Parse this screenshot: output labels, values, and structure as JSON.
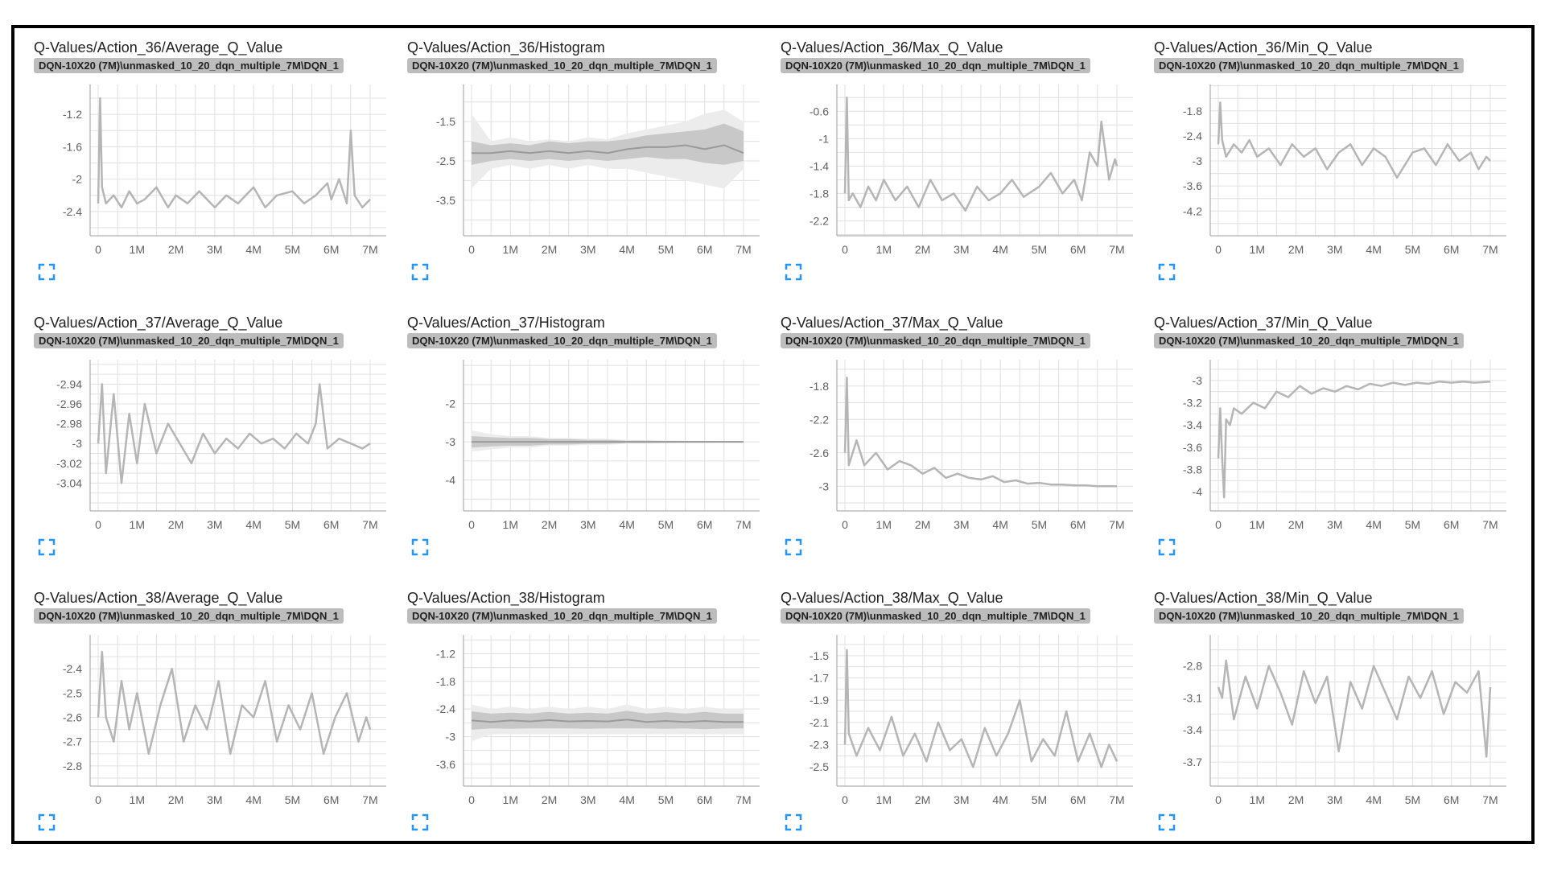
{
  "badge_text": "DQN-10X20 (7M)\\unmasked_10_20_dqn_multiple_7M\\DQN_1",
  "colors": {
    "line": "#b5b5b5",
    "grid": "#e0e0e0",
    "axis": "#9e9e9e",
    "expand_icon": "#2196f3"
  },
  "x_ticks": [
    "0",
    "1M",
    "2M",
    "3M",
    "4M",
    "5M",
    "6M",
    "7M"
  ],
  "chart_data": [
    {
      "type": "line",
      "title": "Q-Values/Action_36/Average_Q_Value",
      "xlim": [
        0,
        7000000
      ],
      "ylim": [
        -2.6,
        -0.95
      ],
      "yticks": [
        "-1.2",
        "-1.6",
        "-2",
        "-2.4"
      ],
      "ytick_values": [
        -1.2,
        -1.6,
        -2,
        -2.4
      ],
      "grid": true,
      "x": [
        0,
        50000,
        100000,
        200000,
        400000,
        600000,
        800000,
        1000000,
        1200000,
        1500000,
        1800000,
        2000000,
        2300000,
        2600000,
        3000000,
        3300000,
        3600000,
        4000000,
        4300000,
        4600000,
        5000000,
        5300000,
        5600000,
        5900000,
        6000000,
        6200000,
        6400000,
        6500000,
        6600000,
        6800000,
        7000000
      ],
      "y": [
        -2.3,
        -1.0,
        -2.1,
        -2.3,
        -2.2,
        -2.35,
        -2.15,
        -2.3,
        -2.25,
        -2.1,
        -2.35,
        -2.2,
        -2.3,
        -2.15,
        -2.35,
        -2.2,
        -2.3,
        -2.1,
        -2.35,
        -2.2,
        -2.15,
        -2.3,
        -2.2,
        -2.05,
        -2.25,
        -2.0,
        -2.3,
        -1.4,
        -2.2,
        -2.35,
        -2.25
      ]
    },
    {
      "type": "area",
      "title": "Q-Values/Action_36/Histogram",
      "xlim": [
        0,
        7000000
      ],
      "ylim": [
        -4.2,
        -0.8
      ],
      "yticks": [
        "-1.5",
        "-2.5",
        "-3.5"
      ],
      "ytick_values": [
        -1.5,
        -2.5,
        -3.5
      ],
      "grid": true,
      "x": [
        0,
        500000,
        1000000,
        1500000,
        2000000,
        2500000,
        3000000,
        3500000,
        4000000,
        4500000,
        5000000,
        5500000,
        6000000,
        6500000,
        7000000
      ],
      "outer_upper": [
        -1.3,
        -2.0,
        -1.9,
        -2.0,
        -1.95,
        -2.0,
        -1.9,
        -1.95,
        -1.8,
        -1.7,
        -1.6,
        -1.5,
        -1.3,
        -1.2,
        -1.5
      ],
      "upper": [
        -2.0,
        -2.1,
        -2.05,
        -2.1,
        -2.0,
        -2.05,
        -2.0,
        -2.0,
        -1.95,
        -1.85,
        -1.8,
        -1.75,
        -1.7,
        -1.55,
        -1.75
      ],
      "median": [
        -2.3,
        -2.3,
        -2.25,
        -2.3,
        -2.25,
        -2.3,
        -2.25,
        -2.3,
        -2.2,
        -2.15,
        -2.15,
        -2.1,
        -2.2,
        -2.1,
        -2.3
      ],
      "lower": [
        -2.6,
        -2.5,
        -2.45,
        -2.5,
        -2.45,
        -2.5,
        -2.45,
        -2.5,
        -2.45,
        -2.4,
        -2.45,
        -2.45,
        -2.55,
        -2.6,
        -2.5
      ],
      "outer_lower": [
        -3.2,
        -2.7,
        -2.6,
        -2.7,
        -2.6,
        -2.7,
        -2.6,
        -2.7,
        -2.7,
        -2.8,
        -2.9,
        -3.0,
        -3.1,
        -3.2,
        -2.7
      ]
    },
    {
      "type": "line",
      "title": "Q-Values/Action_36/Max_Q_Value",
      "xlim": [
        0,
        7000000
      ],
      "ylim": [
        -2.3,
        -0.35
      ],
      "yticks": [
        "-0.6",
        "-1",
        "-1.4",
        "-1.8",
        "-2.2"
      ],
      "ytick_values": [
        -0.6,
        -1,
        -1.4,
        -1.8,
        -2.2
      ],
      "grid": true,
      "x": [
        0,
        50000,
        100000,
        200000,
        400000,
        600000,
        800000,
        1000000,
        1300000,
        1600000,
        1900000,
        2200000,
        2500000,
        2800000,
        3100000,
        3400000,
        3700000,
        4000000,
        4300000,
        4600000,
        5000000,
        5300000,
        5600000,
        5900000,
        6100000,
        6300000,
        6500000,
        6600000,
        6800000,
        6950000,
        7000000
      ],
      "y": [
        -1.8,
        -0.4,
        -1.9,
        -1.8,
        -2.0,
        -1.7,
        -1.9,
        -1.6,
        -1.9,
        -1.7,
        -2.0,
        -1.6,
        -1.9,
        -1.8,
        -2.05,
        -1.7,
        -1.9,
        -1.8,
        -1.6,
        -1.85,
        -1.7,
        -1.5,
        -1.8,
        -1.6,
        -1.9,
        -1.2,
        -1.4,
        -0.75,
        -1.6,
        -1.3,
        -1.4
      ]
    },
    {
      "type": "line",
      "title": "Q-Values/Action_36/Min_Q_Value",
      "xlim": [
        0,
        7000000
      ],
      "ylim": [
        -4.6,
        -1.4
      ],
      "yticks": [
        "-1.8",
        "-2.4",
        "-3",
        "-3.6",
        "-4.2"
      ],
      "ytick_values": [
        -1.8,
        -2.4,
        -3,
        -3.6,
        -4.2
      ],
      "grid": true,
      "x": [
        0,
        50000,
        100000,
        200000,
        400000,
        600000,
        800000,
        1000000,
        1300000,
        1600000,
        1900000,
        2200000,
        2500000,
        2800000,
        3100000,
        3400000,
        3700000,
        4000000,
        4300000,
        4600000,
        5000000,
        5300000,
        5600000,
        5900000,
        6200000,
        6500000,
        6700000,
        6900000,
        7000000
      ],
      "y": [
        -2.6,
        -1.6,
        -2.5,
        -2.9,
        -2.6,
        -2.8,
        -2.5,
        -2.9,
        -2.7,
        -3.1,
        -2.6,
        -2.9,
        -2.7,
        -3.2,
        -2.8,
        -2.6,
        -3.1,
        -2.7,
        -2.9,
        -3.4,
        -2.8,
        -2.7,
        -3.1,
        -2.6,
        -3.0,
        -2.8,
        -3.2,
        -2.9,
        -3.0
      ]
    },
    {
      "type": "line",
      "title": "Q-Values/Action_37/Average_Q_Value",
      "xlim": [
        0,
        7000000
      ],
      "ylim": [
        -3.06,
        -2.925
      ],
      "yticks": [
        "-2.94",
        "-2.96",
        "-2.98",
        "-3",
        "-3.02",
        "-3.04"
      ],
      "ytick_values": [
        -2.94,
        -2.96,
        -2.98,
        -3,
        -3.02,
        -3.04
      ],
      "grid": true,
      "x": [
        0,
        100000,
        200000,
        400000,
        600000,
        800000,
        1000000,
        1200000,
        1500000,
        1800000,
        2100000,
        2400000,
        2700000,
        3000000,
        3300000,
        3600000,
        3900000,
        4200000,
        4500000,
        4800000,
        5100000,
        5400000,
        5600000,
        5700000,
        5900000,
        6200000,
        6500000,
        6800000,
        7000000
      ],
      "y": [
        -3.0,
        -2.94,
        -3.03,
        -2.95,
        -3.04,
        -2.97,
        -3.02,
        -2.96,
        -3.01,
        -2.98,
        -3.0,
        -3.02,
        -2.99,
        -3.01,
        -2.995,
        -3.005,
        -2.99,
        -3.0,
        -2.995,
        -3.005,
        -2.99,
        -3.0,
        -2.98,
        -2.94,
        -3.005,
        -2.995,
        -3.0,
        -3.005,
        -3.0
      ]
    },
    {
      "type": "area",
      "title": "Q-Values/Action_37/Histogram",
      "xlim": [
        0,
        7000000
      ],
      "ylim": [
        -4.6,
        -1.1
      ],
      "yticks": [
        "-2",
        "-3",
        "-4"
      ],
      "ytick_values": [
        -2,
        -3,
        -4
      ],
      "grid": true,
      "x": [
        0,
        500000,
        1000000,
        1500000,
        2000000,
        2500000,
        3000000,
        3500000,
        4000000,
        4500000,
        5000000,
        5500000,
        6000000,
        6500000,
        7000000
      ],
      "outer_upper": [
        -2.7,
        -2.8,
        -2.85,
        -2.85,
        -2.9,
        -2.9,
        -2.92,
        -2.92,
        -2.95,
        -2.95,
        -2.96,
        -2.97,
        -2.97,
        -2.98,
        -2.98
      ],
      "upper": [
        -2.85,
        -2.88,
        -2.9,
        -2.9,
        -2.93,
        -2.93,
        -2.95,
        -2.95,
        -2.97,
        -2.97,
        -2.98,
        -2.98,
        -2.98,
        -2.99,
        -2.99
      ],
      "median": [
        -3.0,
        -3.0,
        -3.0,
        -3.0,
        -3.0,
        -3.0,
        -3.0,
        -3.0,
        -3.0,
        -3.0,
        -3.0,
        -3.0,
        -3.0,
        -3.0,
        -3.0
      ],
      "lower": [
        -3.15,
        -3.12,
        -3.1,
        -3.1,
        -3.07,
        -3.07,
        -3.05,
        -3.05,
        -3.03,
        -3.03,
        -3.02,
        -3.02,
        -3.02,
        -3.01,
        -3.01
      ],
      "outer_lower": [
        -3.25,
        -3.2,
        -3.15,
        -3.15,
        -3.1,
        -3.1,
        -3.08,
        -3.08,
        -3.05,
        -3.05,
        -3.04,
        -3.03,
        -3.03,
        -3.02,
        -3.02
      ]
    },
    {
      "type": "line",
      "title": "Q-Values/Action_37/Max_Q_Value",
      "xlim": [
        0,
        7000000
      ],
      "ylim": [
        -3.2,
        -1.6
      ],
      "yticks": [
        "-1.8",
        "-2.2",
        "-2.6",
        "-3"
      ],
      "ytick_values": [
        -1.8,
        -2.2,
        -2.6,
        -3
      ],
      "grid": true,
      "x": [
        0,
        50000,
        100000,
        300000,
        500000,
        800000,
        1100000,
        1400000,
        1700000,
        2000000,
        2300000,
        2600000,
        2900000,
        3200000,
        3500000,
        3800000,
        4100000,
        4400000,
        4700000,
        5000000,
        5300000,
        5600000,
        5900000,
        6200000,
        6500000,
        6800000,
        7000000
      ],
      "y": [
        -2.6,
        -1.7,
        -2.75,
        -2.45,
        -2.75,
        -2.6,
        -2.8,
        -2.7,
        -2.75,
        -2.85,
        -2.78,
        -2.9,
        -2.85,
        -2.9,
        -2.92,
        -2.88,
        -2.95,
        -2.93,
        -2.97,
        -2.96,
        -2.98,
        -2.98,
        -2.99,
        -2.99,
        -3.0,
        -3.0,
        -3.0
      ]
    },
    {
      "type": "line",
      "title": "Q-Values/Action_37/Min_Q_Value",
      "xlim": [
        0,
        7000000
      ],
      "ylim": [
        -4.1,
        -2.9
      ],
      "yticks": [
        "-3",
        "-3.2",
        "-3.4",
        "-3.6",
        "-3.8",
        "-4"
      ],
      "ytick_values": [
        -3,
        -3.2,
        -3.4,
        -3.6,
        -3.8,
        -4
      ],
      "grid": true,
      "x": [
        0,
        50000,
        100000,
        150000,
        200000,
        300000,
        400000,
        600000,
        900000,
        1200000,
        1500000,
        1800000,
        2100000,
        2400000,
        2700000,
        3000000,
        3300000,
        3600000,
        3900000,
        4200000,
        4500000,
        4800000,
        5100000,
        5400000,
        5700000,
        6000000,
        6300000,
        6600000,
        7000000
      ],
      "y": [
        -3.7,
        -3.25,
        -3.7,
        -4.05,
        -3.35,
        -3.4,
        -3.25,
        -3.3,
        -3.2,
        -3.25,
        -3.1,
        -3.15,
        -3.05,
        -3.12,
        -3.07,
        -3.1,
        -3.05,
        -3.08,
        -3.03,
        -3.05,
        -3.02,
        -3.04,
        -3.02,
        -3.03,
        -3.01,
        -3.02,
        -3.01,
        -3.02,
        -3.01
      ]
    },
    {
      "type": "line",
      "title": "Q-Values/Action_38/Average_Q_Value",
      "xlim": [
        0,
        7000000
      ],
      "ylim": [
        -2.85,
        -2.3
      ],
      "yticks": [
        "-2.4",
        "-2.5",
        "-2.6",
        "-2.7",
        "-2.8"
      ],
      "ytick_values": [
        -2.4,
        -2.5,
        -2.6,
        -2.7,
        -2.8
      ],
      "grid": true,
      "x": [
        0,
        100000,
        200000,
        400000,
        600000,
        800000,
        1000000,
        1300000,
        1600000,
        1900000,
        2200000,
        2500000,
        2800000,
        3100000,
        3400000,
        3700000,
        4000000,
        4300000,
        4600000,
        4900000,
        5200000,
        5500000,
        5800000,
        6100000,
        6400000,
        6700000,
        6900000,
        7000000
      ],
      "y": [
        -2.6,
        -2.33,
        -2.6,
        -2.7,
        -2.45,
        -2.65,
        -2.5,
        -2.75,
        -2.55,
        -2.4,
        -2.7,
        -2.55,
        -2.65,
        -2.45,
        -2.75,
        -2.55,
        -2.6,
        -2.45,
        -2.7,
        -2.55,
        -2.65,
        -2.5,
        -2.75,
        -2.6,
        -2.5,
        -2.7,
        -2.6,
        -2.65
      ]
    },
    {
      "type": "area",
      "title": "Q-Values/Action_38/Histogram",
      "xlim": [
        0,
        7000000
      ],
      "ylim": [
        -3.9,
        -1.0
      ],
      "yticks": [
        "-1.2",
        "-1.8",
        "-2.4",
        "-3",
        "-3.6"
      ],
      "ytick_values": [
        -1.2,
        -1.8,
        -2.4,
        -3,
        -3.6
      ],
      "grid": true,
      "x": [
        0,
        500000,
        1000000,
        1500000,
        2000000,
        2500000,
        3000000,
        3500000,
        4000000,
        4500000,
        5000000,
        5500000,
        6000000,
        6500000,
        7000000
      ],
      "outer_upper": [
        -2.3,
        -2.4,
        -2.35,
        -2.4,
        -2.35,
        -2.4,
        -2.35,
        -2.4,
        -2.3,
        -2.4,
        -2.35,
        -2.4,
        -2.35,
        -2.4,
        -2.4
      ],
      "upper": [
        -2.45,
        -2.5,
        -2.48,
        -2.5,
        -2.46,
        -2.5,
        -2.48,
        -2.5,
        -2.44,
        -2.5,
        -2.47,
        -2.5,
        -2.46,
        -2.5,
        -2.5
      ],
      "median": [
        -2.65,
        -2.68,
        -2.65,
        -2.67,
        -2.64,
        -2.67,
        -2.66,
        -2.67,
        -2.63,
        -2.68,
        -2.66,
        -2.68,
        -2.66,
        -2.68,
        -2.68
      ],
      "lower": [
        -2.85,
        -2.82,
        -2.83,
        -2.82,
        -2.82,
        -2.82,
        -2.83,
        -2.82,
        -2.82,
        -2.82,
        -2.83,
        -2.82,
        -2.84,
        -2.82,
        -2.82
      ],
      "outer_lower": [
        -3.1,
        -2.95,
        -2.95,
        -2.95,
        -2.95,
        -2.95,
        -2.95,
        -2.95,
        -2.95,
        -2.95,
        -2.95,
        -2.95,
        -2.95,
        -2.95,
        -2.95
      ]
    },
    {
      "type": "line",
      "title": "Q-Values/Action_38/Max_Q_Value",
      "xlim": [
        0,
        7000000
      ],
      "ylim": [
        -2.6,
        -1.4
      ],
      "yticks": [
        "-1.5",
        "-1.7",
        "-1.9",
        "-2.1",
        "-2.3",
        "-2.5"
      ],
      "ytick_values": [
        -1.5,
        -1.7,
        -1.9,
        -2.1,
        -2.3,
        -2.5
      ],
      "grid": true,
      "x": [
        0,
        50000,
        100000,
        300000,
        600000,
        900000,
        1200000,
        1500000,
        1800000,
        2100000,
        2400000,
        2700000,
        3000000,
        3300000,
        3600000,
        3900000,
        4200000,
        4500000,
        4800000,
        5100000,
        5400000,
        5700000,
        6000000,
        6300000,
        6600000,
        6800000,
        7000000
      ],
      "y": [
        -2.3,
        -1.45,
        -2.2,
        -2.4,
        -2.15,
        -2.35,
        -2.05,
        -2.4,
        -2.2,
        -2.45,
        -2.1,
        -2.35,
        -2.25,
        -2.5,
        -2.15,
        -2.4,
        -2.2,
        -1.9,
        -2.45,
        -2.25,
        -2.4,
        -2.0,
        -2.45,
        -2.2,
        -2.5,
        -2.3,
        -2.45
      ]
    },
    {
      "type": "line",
      "title": "Q-Values/Action_38/Min_Q_Value",
      "xlim": [
        0,
        7000000
      ],
      "ylim": [
        -3.85,
        -2.6
      ],
      "yticks": [
        "-2.8",
        "-3.1",
        "-3.4",
        "-3.7"
      ],
      "ytick_values": [
        -2.8,
        -3.1,
        -3.4,
        -3.7
      ],
      "grid": true,
      "x": [
        0,
        100000,
        200000,
        400000,
        700000,
        1000000,
        1300000,
        1600000,
        1900000,
        2200000,
        2500000,
        2800000,
        3100000,
        3400000,
        3700000,
        4000000,
        4300000,
        4600000,
        4900000,
        5200000,
        5500000,
        5800000,
        6100000,
        6400000,
        6700000,
        6900000,
        7000000
      ],
      "y": [
        -3.0,
        -3.1,
        -2.75,
        -3.3,
        -2.9,
        -3.2,
        -2.8,
        -3.05,
        -3.35,
        -2.85,
        -3.15,
        -2.9,
        -3.6,
        -2.95,
        -3.2,
        -2.8,
        -3.05,
        -3.3,
        -2.9,
        -3.1,
        -2.85,
        -3.25,
        -2.95,
        -3.05,
        -2.85,
        -3.65,
        -3.0
      ]
    }
  ]
}
